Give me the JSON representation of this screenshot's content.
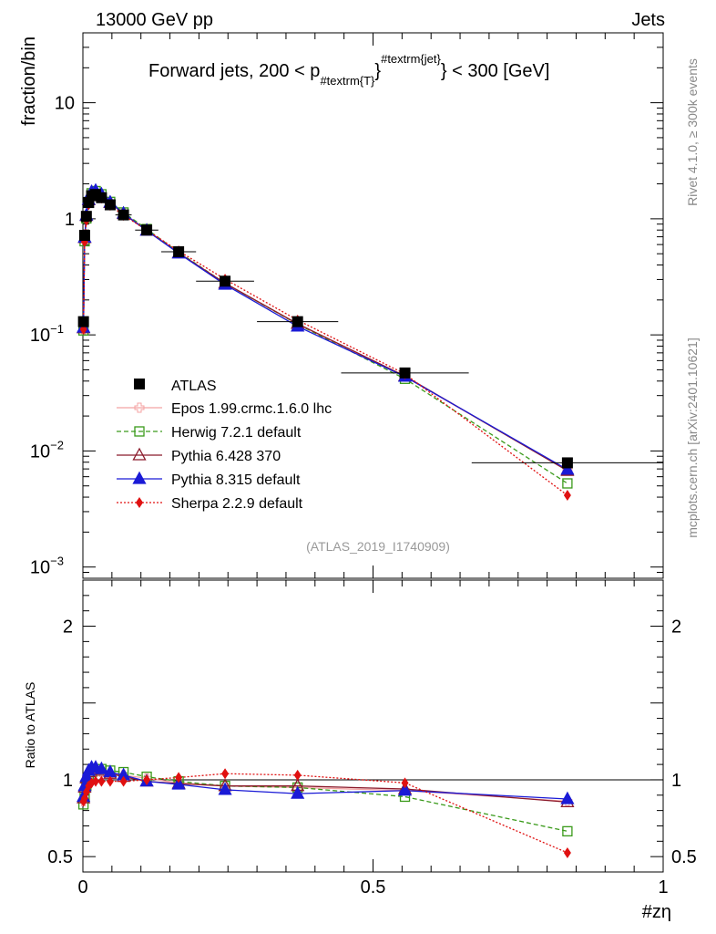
{
  "header": {
    "left": "13000 GeV pp",
    "right": "Jets"
  },
  "side_labels": {
    "rivet": "Rivet 4.1.0, ≥ 300k events",
    "mcplots": "mcplots.cern.ch [arXiv:2401.10621]"
  },
  "watermark": "(ATLAS_2019_I1740909)",
  "chart_data": {
    "type": "line",
    "title": "Forward jets, 200 < p",
    "title_sub": "#textrm{T}",
    "title_sup": "#textrm{jet}",
    "title_end": "} < 300 [GeV]",
    "title_brace": "}",
    "ylabel": "fraction/bin",
    "ratio_ylabel": "Ratio to ATLAS",
    "xlabel": "#zη",
    "xlim": [
      0,
      1
    ],
    "ylim_log": [
      0.0008,
      40
    ],
    "ratio_ylim": [
      0.4,
      2.3
    ],
    "x_ticks": [
      {
        "value": 0,
        "label": "0"
      },
      {
        "value": 0.5,
        "label": "0.5"
      },
      {
        "value": 1,
        "label": "1"
      }
    ],
    "y_ticks": [
      {
        "exp": -3,
        "base": "10",
        "sup": "−3"
      },
      {
        "exp": -2,
        "base": "10",
        "sup": "−2"
      },
      {
        "exp": -1,
        "base": "10",
        "sup": "−1"
      },
      {
        "exp": 0,
        "base": "1",
        "sup": ""
      },
      {
        "exp": 1,
        "base": "10",
        "sup": ""
      }
    ],
    "ratio_ticks": [
      {
        "value": 0.5,
        "label": "0.5"
      },
      {
        "value": 1,
        "label": "1"
      },
      {
        "value": 2,
        "label": "2"
      }
    ],
    "x": [
      0.001,
      0.003,
      0.006,
      0.01,
      0.015,
      0.022,
      0.032,
      0.047,
      0.07,
      0.11,
      0.165,
      0.245,
      0.37,
      0.555,
      0.835
    ],
    "atlas": [
      0.13,
      0.72,
      1.05,
      1.38,
      1.58,
      1.62,
      1.52,
      1.32,
      1.08,
      0.8,
      0.52,
      0.29,
      0.13,
      0.047,
      0.0079
    ],
    "atlas_xerr": [
      0.001,
      0.001,
      0.002,
      0.002,
      0.003,
      0.004,
      0.006,
      0.009,
      0.014,
      0.02,
      0.03,
      0.05,
      0.07,
      0.11,
      0.165
    ],
    "series": [
      {
        "name": "Epos 1.99.crmc.1.6.0 lhc",
        "color": "#f4a3a3",
        "dash": "",
        "marker": "cross-open",
        "ratio": [
          0.86,
          0.93,
          0.98,
          1.02,
          1.04,
          1.05,
          1.05,
          1.04,
          1.03,
          1.01,
          0.98,
          0.96,
          0.95,
          0.93,
          0.86
        ]
      },
      {
        "name": "Herwig 7.2.1 default",
        "color": "#3a9a1a",
        "dash": "5,3",
        "marker": "square-open",
        "ratio": [
          0.84,
          0.89,
          0.96,
          1.01,
          1.05,
          1.07,
          1.07,
          1.06,
          1.05,
          1.02,
          0.99,
          0.96,
          0.95,
          0.89,
          0.665
        ]
      },
      {
        "name": "Pythia 6.428 370",
        "color": "#8b1a2b",
        "dash": "",
        "marker": "triangle-open",
        "ratio": [
          0.88,
          0.95,
          1.01,
          1.05,
          1.07,
          1.07,
          1.06,
          1.04,
          1.02,
          0.99,
          0.975,
          0.96,
          0.96,
          0.94,
          0.855
        ]
      },
      {
        "name": "Pythia 8.315 default",
        "color": "#1a1ad6",
        "dash": "",
        "marker": "triangle-filled",
        "ratio": [
          0.89,
          0.96,
          1.02,
          1.06,
          1.08,
          1.08,
          1.07,
          1.05,
          1.03,
          0.99,
          0.97,
          0.935,
          0.91,
          0.93,
          0.875
        ]
      },
      {
        "name": "Sherpa 2.2.9 default",
        "color": "#e01010",
        "dash": "2,2",
        "marker": "diamond-filled",
        "ratio": [
          0.86,
          0.88,
          0.92,
          0.96,
          0.98,
          0.99,
          0.99,
          0.99,
          0.99,
          1.0,
          1.015,
          1.04,
          1.03,
          0.98,
          0.525
        ]
      }
    ],
    "legend_atlas": "ATLAS",
    "legend_position": "middle-left"
  }
}
